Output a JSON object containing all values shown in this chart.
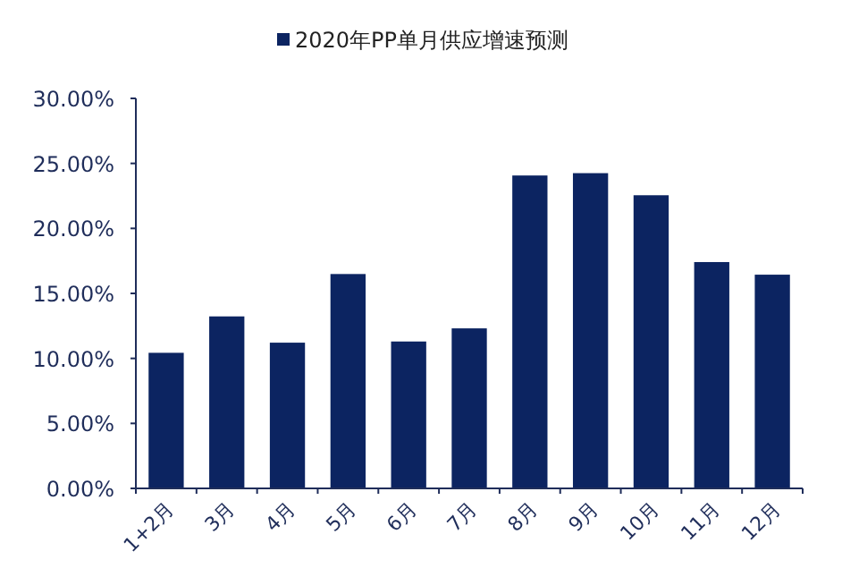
{
  "chart_data": {
    "type": "bar",
    "categories": [
      "1+2月",
      "3月",
      "4月",
      "5月",
      "6月",
      "7月",
      "8月",
      "9月",
      "10月",
      "11月",
      "12月"
    ],
    "series": [
      {
        "name": "2020年PP单月供应增速预测",
        "color": "#0c2461",
        "values": [
          10.43,
          13.23,
          11.21,
          16.49,
          11.3,
          12.31,
          24.07,
          24.25,
          22.55,
          17.41,
          16.44
        ]
      }
    ],
    "ylim": [
      0,
      30
    ],
    "yticks": [
      {
        "value": 0,
        "label": "0.00%"
      },
      {
        "value": 5,
        "label": "5.00%"
      },
      {
        "value": 10,
        "label": "10.00%"
      },
      {
        "value": 15,
        "label": "15.00%"
      },
      {
        "value": 20,
        "label": "20.00%"
      },
      {
        "value": 25,
        "label": "25.00%"
      },
      {
        "value": 30,
        "label": "30.00%"
      }
    ],
    "legend": "top",
    "grid": false
  }
}
